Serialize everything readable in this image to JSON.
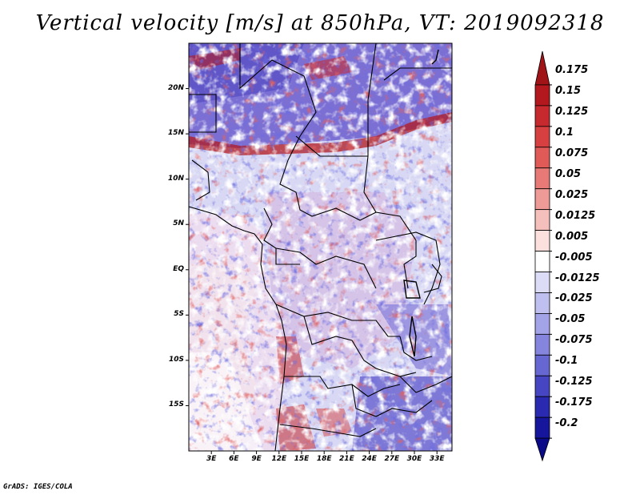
{
  "title": "Vertical velocity [m/s] at 850hPa, VT: 2019092318",
  "footer": "GrADS: IGES/COLA",
  "map": {
    "lat_labels": [
      "20N",
      "15N",
      "10N",
      "5N",
      "EQ",
      "5S",
      "10S",
      "15S"
    ],
    "lat_values": [
      20,
      15,
      10,
      5,
      0,
      -5,
      -10,
      -15
    ],
    "lon_labels": [
      "3E",
      "6E",
      "9E",
      "12E",
      "15E",
      "18E",
      "21E",
      "24E",
      "27E",
      "30E",
      "33E"
    ],
    "lon_values": [
      3,
      6,
      9,
      12,
      15,
      18,
      21,
      24,
      27,
      30,
      33
    ],
    "lon_range": [
      0,
      35
    ],
    "lat_range": [
      -20,
      25
    ]
  },
  "colorbar": {
    "labels": [
      "0.175",
      "0.15",
      "0.125",
      "0.1",
      "0.075",
      "0.05",
      "0.025",
      "0.0125",
      "0.005",
      "-0.005",
      "-0.0125",
      "-0.025",
      "-0.05",
      "-0.075",
      "-0.1",
      "-0.125",
      "-0.175",
      "-0.2"
    ],
    "colors": [
      "#a01418",
      "#b2181e",
      "#c72a2e",
      "#d64040",
      "#e05a58",
      "#e77a76",
      "#ee9a96",
      "#f5c0bc",
      "#fbe0dd",
      "#ffffff",
      "#dcdcf6",
      "#c0c0f0",
      "#a3a3e8",
      "#8585de",
      "#6767d2",
      "#4646c2",
      "#2a2ab0",
      "#16169c",
      "#0a0a88"
    ]
  }
}
